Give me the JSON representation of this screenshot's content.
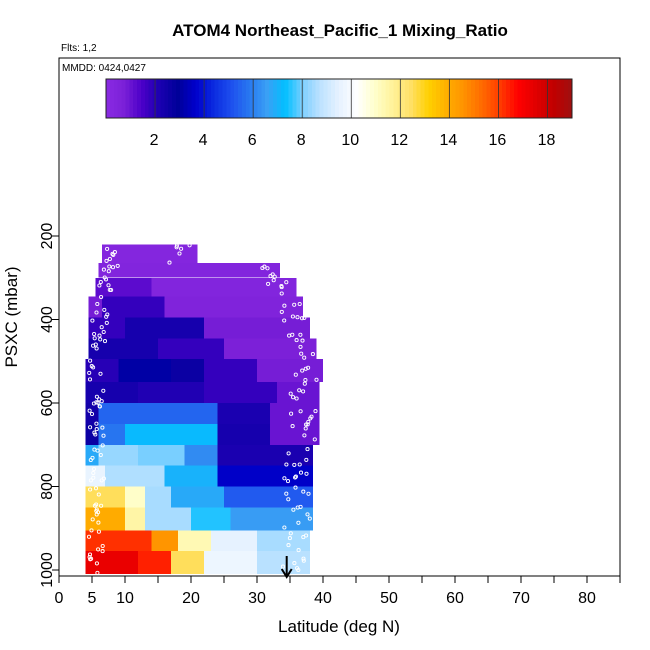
{
  "chart_data": {
    "type": "heatmap",
    "title": "ATOM4 Northeast_Pacific_1 Mixing_Ratio",
    "flights_label": "Flts: 1,2",
    "dates_label": "MMDD: 0424,0427",
    "xlabel": "Latitude (deg N)",
    "ylabel": "PSXC (mbar)",
    "xlim": [
      0,
      85
    ],
    "ylim": [
      1010,
      0
    ],
    "x_ticks": [
      0,
      5,
      10,
      20,
      30,
      40,
      50,
      60,
      70,
      80
    ],
    "y_ticks": [
      200,
      400,
      600,
      800,
      1000
    ],
    "colorbar": {
      "vmin": 0,
      "vmax": 19,
      "ticks": [
        2,
        4,
        6,
        8,
        10,
        12,
        14,
        16,
        18
      ],
      "colors": [
        "#8a2be2",
        "#7b20d8",
        "#4b00c8",
        "#1a00b0",
        "#000099",
        "#0000cc",
        "#0a2ae0",
        "#1e50ee",
        "#2878f0",
        "#3aa0f5",
        "#00bfff",
        "#80d0ff",
        "#bfe3ff",
        "#e6f2ff",
        "#ffffff",
        "#ffffcc",
        "#fff299",
        "#ffe066",
        "#ffd000",
        "#ffb000",
        "#ff9000",
        "#ff6a00",
        "#ff3a00",
        "#ff0000",
        "#e00000",
        "#c00000",
        "#a01010"
      ]
    },
    "arrow_latitude": 34.5,
    "layers": [
      {
        "p_top": 220,
        "p_bot": 265,
        "x_min": 6.5,
        "x_max": 21,
        "segments": [
          {
            "x0": 6.5,
            "x1": 21,
            "value": 0.3
          }
        ]
      },
      {
        "p_top": 265,
        "p_bot": 300,
        "x_min": 6,
        "x_max": 33.5,
        "segments": [
          {
            "x0": 6,
            "x1": 33.5,
            "value": 0.4
          }
        ]
      },
      {
        "p_top": 300,
        "p_bot": 345,
        "x_min": 5.5,
        "x_max": 36,
        "segments": [
          {
            "x0": 5.5,
            "x1": 14,
            "value": 1.2
          },
          {
            "x0": 14,
            "x1": 36,
            "value": 0.4
          }
        ]
      },
      {
        "p_top": 345,
        "p_bot": 395,
        "x_min": 4.5,
        "x_max": 37,
        "segments": [
          {
            "x0": 4.5,
            "x1": 6.5,
            "value": 0.8
          },
          {
            "x0": 6.5,
            "x1": 16,
            "value": 1.8
          },
          {
            "x0": 16,
            "x1": 37,
            "value": 0.5
          }
        ]
      },
      {
        "p_top": 395,
        "p_bot": 445,
        "x_min": 4.5,
        "x_max": 38,
        "segments": [
          {
            "x0": 4.5,
            "x1": 10,
            "value": 1.8
          },
          {
            "x0": 10,
            "x1": 22,
            "value": 2.3
          },
          {
            "x0": 22,
            "x1": 38,
            "value": 0.8
          }
        ]
      },
      {
        "p_top": 445,
        "p_bot": 495,
        "x_min": 4.5,
        "x_max": 39,
        "segments": [
          {
            "x0": 4.5,
            "x1": 15,
            "value": 2.3
          },
          {
            "x0": 15,
            "x1": 25,
            "value": 1.8
          },
          {
            "x0": 25,
            "x1": 39,
            "value": 0.7
          }
        ]
      },
      {
        "p_top": 495,
        "p_bot": 550,
        "x_min": 4,
        "x_max": 40,
        "segments": [
          {
            "x0": 4,
            "x1": 9,
            "value": 2.0
          },
          {
            "x0": 9,
            "x1": 17,
            "value": 3.1
          },
          {
            "x0": 17,
            "x1": 22,
            "value": 2.6
          },
          {
            "x0": 22,
            "x1": 30,
            "value": 1.8
          },
          {
            "x0": 30,
            "x1": 40,
            "value": 0.8
          }
        ]
      },
      {
        "p_top": 550,
        "p_bot": 600,
        "x_min": 4,
        "x_max": 39.5,
        "segments": [
          {
            "x0": 4,
            "x1": 12,
            "value": 2.3
          },
          {
            "x0": 12,
            "x1": 22,
            "value": 2.1
          },
          {
            "x0": 22,
            "x1": 33,
            "value": 1.8
          },
          {
            "x0": 33,
            "x1": 39.5,
            "value": 1.0
          }
        ]
      },
      {
        "p_top": 600,
        "p_bot": 650,
        "x_min": 4,
        "x_max": 39.5,
        "segments": [
          {
            "x0": 4,
            "x1": 6,
            "value": 2.4
          },
          {
            "x0": 6,
            "x1": 24,
            "value": 5.5
          },
          {
            "x0": 24,
            "x1": 32,
            "value": 2.2
          },
          {
            "x0": 32,
            "x1": 39.5,
            "value": 1.0
          }
        ]
      },
      {
        "p_top": 650,
        "p_bot": 700,
        "x_min": 4,
        "x_max": 39.5,
        "segments": [
          {
            "x0": 4,
            "x1": 6,
            "value": 2.6
          },
          {
            "x0": 6,
            "x1": 10,
            "value": 5.8
          },
          {
            "x0": 10,
            "x1": 24,
            "value": 7.2
          },
          {
            "x0": 24,
            "x1": 32,
            "value": 2.3
          },
          {
            "x0": 32,
            "x1": 39.5,
            "value": 1.0
          }
        ]
      },
      {
        "p_top": 700,
        "p_bot": 750,
        "x_min": 4,
        "x_max": 38.5,
        "segments": [
          {
            "x0": 4,
            "x1": 6,
            "value": 6.8
          },
          {
            "x0": 6,
            "x1": 12,
            "value": 8.3
          },
          {
            "x0": 12,
            "x1": 19,
            "value": 8.0
          },
          {
            "x0": 19,
            "x1": 24,
            "value": 6.2
          },
          {
            "x0": 24,
            "x1": 38.5,
            "value": 2.2
          }
        ]
      },
      {
        "p_top": 750,
        "p_bot": 800,
        "x_min": 4,
        "x_max": 38.5,
        "segments": [
          {
            "x0": 4,
            "x1": 7,
            "value": 9.6
          },
          {
            "x0": 7,
            "x1": 16,
            "value": 8.6
          },
          {
            "x0": 16,
            "x1": 24,
            "value": 7.0
          },
          {
            "x0": 24,
            "x1": 38.5,
            "value": 3.6
          }
        ]
      },
      {
        "p_top": 800,
        "p_bot": 850,
        "x_min": 4,
        "x_max": 38.5,
        "segments": [
          {
            "x0": 4,
            "x1": 10,
            "value": 12.5
          },
          {
            "x0": 10,
            "x1": 13,
            "value": 11.0
          },
          {
            "x0": 13,
            "x1": 17,
            "value": 8.5
          },
          {
            "x0": 17,
            "x1": 25,
            "value": 6.8
          },
          {
            "x0": 25,
            "x1": 38.5,
            "value": 5.3
          }
        ]
      },
      {
        "p_top": 850,
        "p_bot": 905,
        "x_min": 4,
        "x_max": 38.5,
        "segments": [
          {
            "x0": 4,
            "x1": 10,
            "value": 14.0
          },
          {
            "x0": 10,
            "x1": 13,
            "value": 11.5
          },
          {
            "x0": 13,
            "x1": 20,
            "value": 8.5
          },
          {
            "x0": 20,
            "x1": 26,
            "value": 7.5
          },
          {
            "x0": 26,
            "x1": 38.5,
            "value": 6.5
          }
        ]
      },
      {
        "p_top": 905,
        "p_bot": 955,
        "x_min": 4,
        "x_max": 38,
        "segments": [
          {
            "x0": 4,
            "x1": 14,
            "value": 16.2
          },
          {
            "x0": 14,
            "x1": 18,
            "value": 14.5
          },
          {
            "x0": 18,
            "x1": 23,
            "value": 11.3
          },
          {
            "x0": 23,
            "x1": 30,
            "value": 9.5
          },
          {
            "x0": 30,
            "x1": 38,
            "value": 8.5
          }
        ]
      },
      {
        "p_top": 955,
        "p_bot": 1010,
        "x_min": 4,
        "x_max": 38,
        "segments": [
          {
            "x0": 4,
            "x1": 12,
            "value": 17.3
          },
          {
            "x0": 12,
            "x1": 17,
            "value": 16.4
          },
          {
            "x0": 17,
            "x1": 22,
            "value": 12.5
          },
          {
            "x0": 22,
            "x1": 30,
            "value": 9.7
          },
          {
            "x0": 30,
            "x1": 38,
            "value": 8.7
          }
        ]
      }
    ]
  }
}
